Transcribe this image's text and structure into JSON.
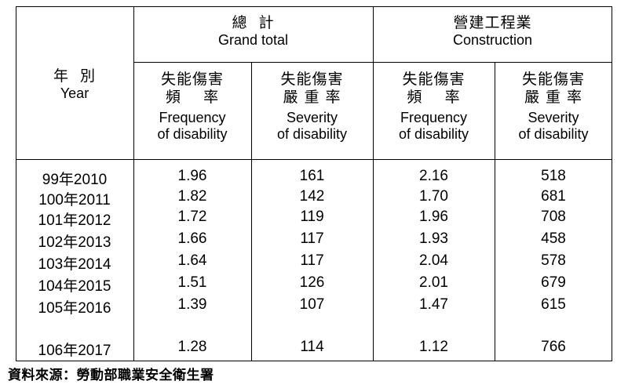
{
  "header": {
    "year": {
      "zh": "年  別",
      "en": "Year"
    },
    "grand_total": {
      "zh": "總  計",
      "en": "Grand total"
    },
    "construction": {
      "zh": "營建工程業",
      "en": "Construction"
    },
    "freq": {
      "zh1": "失能傷害",
      "zh2": "頻    率",
      "en1": "Frequency",
      "en2": "of disability"
    },
    "sev": {
      "zh1": "失能傷害",
      "zh2": "嚴 重 率",
      "en1": "Severity",
      "en2": "of disability"
    }
  },
  "rows": [
    {
      "year": "99年2010",
      "gt_freq": "1.96",
      "gt_sev": "161",
      "c_freq": "2.16",
      "c_sev": "518"
    },
    {
      "year": "100年2011",
      "gt_freq": "1.82",
      "gt_sev": "142",
      "c_freq": "1.70",
      "c_sev": "681"
    },
    {
      "year": "101年2012",
      "gt_freq": "1.72",
      "gt_sev": "119",
      "c_freq": "1.96",
      "c_sev": "708"
    },
    {
      "year": "102年2013",
      "gt_freq": "1.66",
      "gt_sev": "117",
      "c_freq": "1.93",
      "c_sev": "458"
    },
    {
      "year": "103年2014",
      "gt_freq": "1.64",
      "gt_sev": "117",
      "c_freq": "2.04",
      "c_sev": "578"
    },
    {
      "year": "104年2015",
      "gt_freq": "1.51",
      "gt_sev": "126",
      "c_freq": "2.01",
      "c_sev": "679"
    },
    {
      "year": "105年2016",
      "gt_freq": "1.39",
      "gt_sev": "107",
      "c_freq": "1.47",
      "c_sev": "615"
    },
    {
      "year": "106年2017",
      "gt_freq": "1.28",
      "gt_sev": "114",
      "c_freq": "1.12",
      "c_sev": "766"
    }
  ],
  "source": "資料來源：勞動部職業安全衛生署"
}
